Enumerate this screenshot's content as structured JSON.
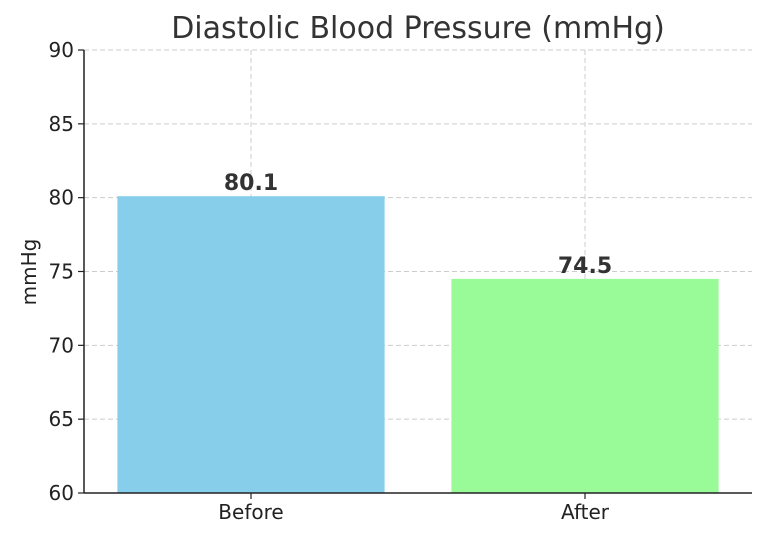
{
  "chart_data": {
    "type": "bar",
    "title": "Diastolic Blood Pressure (mmHg)",
    "xlabel": "",
    "ylabel": "mmHg",
    "categories": [
      "Before",
      "After"
    ],
    "values": [
      80.1,
      74.5
    ],
    "data_labels": [
      "80.1",
      "74.5"
    ],
    "colors": [
      "#87CEEB",
      "#98FB98"
    ],
    "ylim": [
      60,
      90
    ],
    "yticks": [
      60,
      65,
      70,
      75,
      80,
      85,
      90
    ],
    "grid": true,
    "legend": "none"
  }
}
